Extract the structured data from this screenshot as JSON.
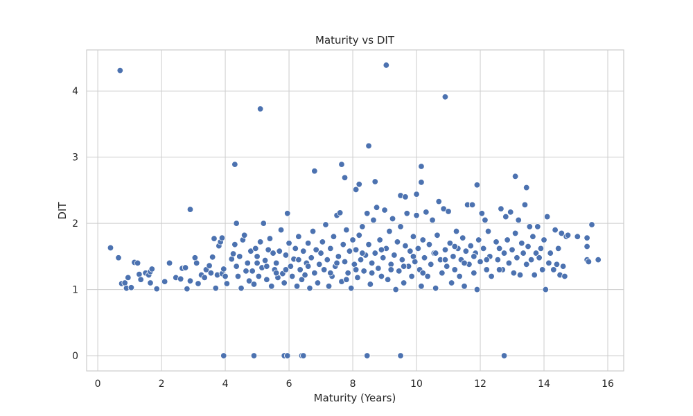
{
  "chart_data": {
    "type": "scatter",
    "title": "Maturity vs DIT",
    "xlabel": "Maturity (Years)",
    "ylabel": "DIT",
    "xlim": [
      -0.35,
      16.5
    ],
    "ylim": [
      -0.23,
      4.62
    ],
    "xticks": [
      0,
      2,
      4,
      6,
      8,
      10,
      12,
      14,
      16
    ],
    "yticks": [
      0,
      1,
      2,
      3,
      4
    ],
    "grid": true,
    "point_color": "#4c72b0",
    "points": [
      [
        0.7,
        4.31
      ],
      [
        9.05,
        4.39
      ],
      [
        5.1,
        3.73
      ],
      [
        10.9,
        3.91
      ],
      [
        8.5,
        3.17
      ],
      [
        4.3,
        2.89
      ],
      [
        7.65,
        2.89
      ],
      [
        6.8,
        2.79
      ],
      [
        7.75,
        2.69
      ],
      [
        8.7,
        2.63
      ],
      [
        8.2,
        2.59
      ],
      [
        8.1,
        2.51
      ],
      [
        10.15,
        2.86
      ],
      [
        10.15,
        2.62
      ],
      [
        13.1,
        2.71
      ],
      [
        13.45,
        2.54
      ],
      [
        9.5,
        2.42
      ],
      [
        9.65,
        2.4
      ],
      [
        10.0,
        2.44
      ],
      [
        11.9,
        2.58
      ],
      [
        2.9,
        2.21
      ],
      [
        0.4,
        1.63
      ],
      [
        0.65,
        1.48
      ],
      [
        0.75,
        1.09
      ],
      [
        0.85,
        1.1
      ],
      [
        0.95,
        1.18
      ],
      [
        0.9,
        1.02
      ],
      [
        1.05,
        1.03
      ],
      [
        1.15,
        1.41
      ],
      [
        1.25,
        1.4
      ],
      [
        1.3,
        1.23
      ],
      [
        1.35,
        1.15
      ],
      [
        1.5,
        1.25
      ],
      [
        1.6,
        1.22
      ],
      [
        1.65,
        1.27
      ],
      [
        1.7,
        1.31
      ],
      [
        1.65,
        1.1
      ],
      [
        1.85,
        1.01
      ],
      [
        2.1,
        1.12
      ],
      [
        2.25,
        1.4
      ],
      [
        2.45,
        1.18
      ],
      [
        2.6,
        1.16
      ],
      [
        2.65,
        1.32
      ],
      [
        2.75,
        1.33
      ],
      [
        2.8,
        1.01
      ],
      [
        2.9,
        1.13
      ],
      [
        3.05,
        1.48
      ],
      [
        3.1,
        1.4
      ],
      [
        3.15,
        1.09
      ],
      [
        3.25,
        1.22
      ],
      [
        3.35,
        1.18
      ],
      [
        3.4,
        1.3
      ],
      [
        3.5,
        1.36
      ],
      [
        3.55,
        1.25
      ],
      [
        3.6,
        1.49
      ],
      [
        3.65,
        1.77
      ],
      [
        3.7,
        1.02
      ],
      [
        3.75,
        1.22
      ],
      [
        3.8,
        1.66
      ],
      [
        3.85,
        1.72
      ],
      [
        3.9,
        1.78
      ],
      [
        3.9,
        1.24
      ],
      [
        3.95,
        1.31
      ],
      [
        4.0,
        1.2
      ],
      [
        4.05,
        1.09
      ],
      [
        4.2,
        1.46
      ],
      [
        4.25,
        1.54
      ],
      [
        4.3,
        1.68
      ],
      [
        4.35,
        2.0
      ],
      [
        4.35,
        1.35
      ],
      [
        4.4,
        1.2
      ],
      [
        4.45,
        1.5
      ],
      [
        4.5,
        1.02
      ],
      [
        4.55,
        1.75
      ],
      [
        4.6,
        1.82
      ],
      [
        4.65,
        1.28
      ],
      [
        4.7,
        1.4
      ],
      [
        4.75,
        1.13
      ],
      [
        4.8,
        1.58
      ],
      [
        4.85,
        1.28
      ],
      [
        4.9,
        1.08
      ],
      [
        4.95,
        1.62
      ],
      [
        5.0,
        1.5
      ],
      [
        5.05,
        1.2
      ],
      [
        5.1,
        1.72
      ],
      [
        5.15,
        1.33
      ],
      [
        5.2,
        2.0
      ],
      [
        5.25,
        1.44
      ],
      [
        5.3,
        1.15
      ],
      [
        5.35,
        1.6
      ],
      [
        5.4,
        1.77
      ],
      [
        5.45,
        1.05
      ],
      [
        5.5,
        1.55
      ],
      [
        5.55,
        1.3
      ],
      [
        5.6,
        1.4
      ],
      [
        5.65,
        1.18
      ],
      [
        5.7,
        1.58
      ],
      [
        5.75,
        1.9
      ],
      [
        5.8,
        1.24
      ],
      [
        5.85,
        1.1
      ],
      [
        5.9,
        1.52
      ],
      [
        5.95,
        2.15
      ],
      [
        6.0,
        1.7
      ],
      [
        6.05,
        1.35
      ],
      [
        6.1,
        1.2
      ],
      [
        6.15,
        1.46
      ],
      [
        6.2,
        1.62
      ],
      [
        6.25,
        1.05
      ],
      [
        6.3,
        1.8
      ],
      [
        6.35,
        1.3
      ],
      [
        6.4,
        1.15
      ],
      [
        6.45,
        1.58
      ],
      [
        6.5,
        1.22
      ],
      [
        6.55,
        1.4
      ],
      [
        6.6,
        1.7
      ],
      [
        6.65,
        1.02
      ],
      [
        6.7,
        1.48
      ],
      [
        6.75,
        1.88
      ],
      [
        6.8,
        1.25
      ],
      [
        6.85,
        1.6
      ],
      [
        6.9,
        1.1
      ],
      [
        6.95,
        1.38
      ],
      [
        7.0,
        1.55
      ],
      [
        7.05,
        1.72
      ],
      [
        7.1,
        1.3
      ],
      [
        7.15,
        1.98
      ],
      [
        7.2,
        1.45
      ],
      [
        7.25,
        1.05
      ],
      [
        7.3,
        1.62
      ],
      [
        7.35,
        1.2
      ],
      [
        7.4,
        1.8
      ],
      [
        7.45,
        1.35
      ],
      [
        7.5,
        2.12
      ],
      [
        7.55,
        1.5
      ],
      [
        7.6,
        2.16
      ],
      [
        7.65,
        1.12
      ],
      [
        7.7,
        1.68
      ],
      [
        7.75,
        1.42
      ],
      [
        7.8,
        1.9
      ],
      [
        7.85,
        1.25
      ],
      [
        7.9,
        1.58
      ],
      [
        7.95,
        1.02
      ],
      [
        8.0,
        1.75
      ],
      [
        8.05,
        1.38
      ],
      [
        8.1,
        1.6
      ],
      [
        8.15,
        1.18
      ],
      [
        8.2,
        1.82
      ],
      [
        8.25,
        1.45
      ],
      [
        8.3,
        1.95
      ],
      [
        8.35,
        1.28
      ],
      [
        8.4,
        1.52
      ],
      [
        8.45,
        2.15
      ],
      [
        8.5,
        1.68
      ],
      [
        8.55,
        1.08
      ],
      [
        8.6,
        1.4
      ],
      [
        8.65,
        2.05
      ],
      [
        8.7,
        1.55
      ],
      [
        8.75,
        2.24
      ],
      [
        8.8,
        1.32
      ],
      [
        8.85,
        1.75
      ],
      [
        8.9,
        1.2
      ],
      [
        8.95,
        1.48
      ],
      [
        9.0,
        2.2
      ],
      [
        9.05,
        1.62
      ],
      [
        9.1,
        1.15
      ],
      [
        9.15,
        1.88
      ],
      [
        9.2,
        1.38
      ],
      [
        9.25,
        2.07
      ],
      [
        9.3,
        1.52
      ],
      [
        9.35,
        1.0
      ],
      [
        9.4,
        1.72
      ],
      [
        9.45,
        1.28
      ],
      [
        9.5,
        1.95
      ],
      [
        9.55,
        1.45
      ],
      [
        9.6,
        1.1
      ],
      [
        9.65,
        1.66
      ],
      [
        9.7,
        2.15
      ],
      [
        9.75,
        1.35
      ],
      [
        9.8,
        1.58
      ],
      [
        9.85,
        1.2
      ],
      [
        9.9,
        1.8
      ],
      [
        9.95,
        1.42
      ],
      [
        10.0,
        2.12
      ],
      [
        10.05,
        1.62
      ],
      [
        10.1,
        1.3
      ],
      [
        10.15,
        1.05
      ],
      [
        10.2,
        1.75
      ],
      [
        10.25,
        1.48
      ],
      [
        10.3,
        2.17
      ],
      [
        10.35,
        1.2
      ],
      [
        10.4,
        1.68
      ],
      [
        10.45,
        1.38
      ],
      [
        10.5,
        2.05
      ],
      [
        10.55,
        1.55
      ],
      [
        10.6,
        1.02
      ],
      [
        10.65,
        1.82
      ],
      [
        10.7,
        2.33
      ],
      [
        10.75,
        1.45
      ],
      [
        10.8,
        1.25
      ],
      [
        10.85,
        2.22
      ],
      [
        10.9,
        1.6
      ],
      [
        10.95,
        1.35
      ],
      [
        11.0,
        2.18
      ],
      [
        11.05,
        1.7
      ],
      [
        11.1,
        1.1
      ],
      [
        11.15,
        1.5
      ],
      [
        11.2,
        1.3
      ],
      [
        11.25,
        1.88
      ],
      [
        11.3,
        1.62
      ],
      [
        11.35,
        1.2
      ],
      [
        11.4,
        1.45
      ],
      [
        11.45,
        1.78
      ],
      [
        11.5,
        1.05
      ],
      [
        11.55,
        1.58
      ],
      [
        11.6,
        2.28
      ],
      [
        11.65,
        1.38
      ],
      [
        11.7,
        1.66
      ],
      [
        11.75,
        2.28
      ],
      [
        11.8,
        1.25
      ],
      [
        11.85,
        1.55
      ],
      [
        11.9,
        1.0
      ],
      [
        11.95,
        1.75
      ],
      [
        12.0,
        1.42
      ],
      [
        12.05,
        2.15
      ],
      [
        12.1,
        1.62
      ],
      [
        12.15,
        2.05
      ],
      [
        12.2,
        1.3
      ],
      [
        12.25,
        1.88
      ],
      [
        12.3,
        1.5
      ],
      [
        12.35,
        1.2
      ],
      [
        12.5,
        1.72
      ],
      [
        12.55,
        1.45
      ],
      [
        12.6,
        1.62
      ],
      [
        12.65,
        2.22
      ],
      [
        12.7,
        1.3
      ],
      [
        12.75,
        1.55
      ],
      [
        12.8,
        2.1
      ],
      [
        12.85,
        1.75
      ],
      [
        12.9,
        1.4
      ],
      [
        12.95,
        2.17
      ],
      [
        13.0,
        1.6
      ],
      [
        13.05,
        1.25
      ],
      [
        13.1,
        1.85
      ],
      [
        13.15,
        1.48
      ],
      [
        13.2,
        2.05
      ],
      [
        13.25,
        1.22
      ],
      [
        13.3,
        1.7
      ],
      [
        13.35,
        1.55
      ],
      [
        13.4,
        2.28
      ],
      [
        13.45,
        1.38
      ],
      [
        13.5,
        1.65
      ],
      [
        13.55,
        1.95
      ],
      [
        13.6,
        1.45
      ],
      [
        13.65,
        1.8
      ],
      [
        13.7,
        1.22
      ],
      [
        13.75,
        1.55
      ],
      [
        13.8,
        1.95
      ],
      [
        13.85,
        1.48
      ],
      [
        13.9,
        1.62
      ],
      [
        13.95,
        1.3
      ],
      [
        14.0,
        1.75
      ],
      [
        14.05,
        1.0
      ],
      [
        14.1,
        2.1
      ],
      [
        14.15,
        1.4
      ],
      [
        14.2,
        1.55
      ],
      [
        14.3,
        1.3
      ],
      [
        14.35,
        1.9
      ],
      [
        14.4,
        1.38
      ],
      [
        14.45,
        1.62
      ],
      [
        14.5,
        1.22
      ],
      [
        14.55,
        1.85
      ],
      [
        14.6,
        1.35
      ],
      [
        14.65,
        1.2
      ],
      [
        14.7,
        1.8
      ],
      [
        14.75,
        1.82
      ],
      [
        15.05,
        1.8
      ],
      [
        15.35,
        1.78
      ],
      [
        15.35,
        1.45
      ],
      [
        15.4,
        1.42
      ],
      [
        15.35,
        1.65
      ],
      [
        15.5,
        1.98
      ],
      [
        15.7,
        1.45
      ],
      [
        7.3,
        1.25
      ],
      [
        7.5,
        1.4
      ],
      [
        7.8,
        1.15
      ],
      [
        8.1,
        1.3
      ],
      [
        8.3,
        1.55
      ],
      [
        8.6,
        1.25
      ],
      [
        8.9,
        1.6
      ],
      [
        9.2,
        1.3
      ],
      [
        9.6,
        1.35
      ],
      [
        9.9,
        1.5
      ],
      [
        10.2,
        1.25
      ],
      [
        10.6,
        1.55
      ],
      [
        10.9,
        1.45
      ],
      [
        11.2,
        1.65
      ],
      [
        11.5,
        1.4
      ],
      [
        11.8,
        1.5
      ],
      [
        12.2,
        1.45
      ],
      [
        12.6,
        1.3
      ],
      [
        6.6,
        1.35
      ],
      [
        6.3,
        1.45
      ],
      [
        5.9,
        1.3
      ],
      [
        5.6,
        1.25
      ],
      [
        5.3,
        1.35
      ],
      [
        5.0,
        1.4
      ],
      [
        3.95,
        0.0
      ],
      [
        4.9,
        0.0
      ],
      [
        5.85,
        0.0
      ],
      [
        5.95,
        0.0
      ],
      [
        6.4,
        0.0
      ],
      [
        6.45,
        0.0
      ],
      [
        8.45,
        0.0
      ],
      [
        9.5,
        0.0
      ],
      [
        12.75,
        0.0
      ]
    ]
  }
}
